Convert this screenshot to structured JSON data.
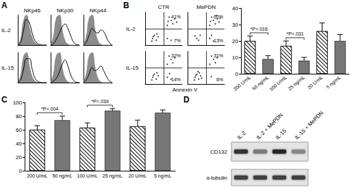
{
  "chart_data": [
    {
      "type": "histogram_overlay",
      "title": "A",
      "columns": [
        "NKp46",
        "NKp30",
        "NKp44"
      ],
      "rows": [
        "IL-2",
        "IL-15"
      ],
      "xlim": [
        0,
        10
      ],
      "ylim": [
        0,
        100
      ],
      "tick_labels": false,
      "x": [
        0,
        1,
        2,
        3,
        4,
        5,
        6,
        7,
        8,
        9,
        10
      ],
      "plots": [
        [
          {
            "series": [
              {
                "type": "area",
                "color": "#8c8c8c",
                "values": [
                  0,
                  20,
                  80,
                  100,
                  60,
                  25,
                  8,
                  2,
                  0,
                  0,
                  0
                ]
              },
              {
                "type": "line",
                "color": "#000000",
                "values": [
                  0,
                  10,
                  50,
                  85,
                  75,
                  40,
                  15,
                  5,
                  1,
                  0,
                  0
                ]
              }
            ]
          },
          {
            "series": [
              {
                "type": "area",
                "color": "#8c8c8c",
                "values": [
                  0,
                  30,
                  90,
                  100,
                  50,
                  15,
                  3,
                  0,
                  0,
                  0,
                  0
                ]
              },
              {
                "type": "line",
                "color": "#000000",
                "values": [
                  0,
                  5,
                  20,
                  40,
                  60,
                  70,
                  55,
                  30,
                  10,
                  2,
                  0
                ]
              }
            ]
          },
          {
            "series": [
              {
                "type": "area",
                "color": "#8c8c8c",
                "values": [
                  0,
                  30,
                  90,
                  100,
                  50,
                  15,
                  3,
                  0,
                  0,
                  0,
                  0
                ]
              },
              {
                "type": "line",
                "color": "#000000",
                "values": [
                  0,
                  10,
                  35,
                  55,
                  45,
                  40,
                  50,
                  45,
                  25,
                  8,
                  0
                ]
              }
            ]
          }
        ],
        [
          {
            "series": [
              {
                "type": "area",
                "color": "#8c8c8c",
                "values": [
                  0,
                  25,
                  85,
                  100,
                  55,
                  20,
                  5,
                  1,
                  0,
                  0,
                  0
                ]
              },
              {
                "type": "line",
                "color": "#000000",
                "values": [
                  0,
                  10,
                  45,
                  80,
                  80,
                  45,
                  15,
                  4,
                  1,
                  0,
                  0
                ]
              }
            ]
          },
          {
            "series": [
              {
                "type": "area",
                "color": "#8c8c8c",
                "values": [
                  0,
                  30,
                  90,
                  100,
                  50,
                  15,
                  3,
                  0,
                  0,
                  0,
                  0
                ]
              },
              {
                "type": "line",
                "color": "#000000",
                "values": [
                  0,
                  5,
                  15,
                  35,
                  60,
                  75,
                  55,
                  25,
                  8,
                  1,
                  0
                ]
              }
            ]
          },
          {
            "series": [
              {
                "type": "area",
                "color": "#8c8c8c",
                "values": [
                  0,
                  30,
                  90,
                  100,
                  50,
                  15,
                  3,
                  0,
                  0,
                  0,
                  0
                ]
              },
              {
                "type": "line",
                "color": "#000000",
                "values": [
                  0,
                  10,
                  30,
                  50,
                  40,
                  45,
                  55,
                  40,
                  20,
                  6,
                  0
                ]
              }
            ]
          }
        ]
      ]
    },
    {
      "type": "dot_plot",
      "title": "B",
      "columns": [
        "CTR",
        "MePDN"
      ],
      "rows": [
        "IL-2",
        "IL-15"
      ],
      "x_label": "Annexin V",
      "xlim": [
        0,
        10
      ],
      "ylim": [
        0,
        10
      ],
      "tick_labels": false,
      "gates": {
        "x": 5,
        "y": 5
      },
      "color": "#000000",
      "plots": [
        [
          {
            "points": [
              [
                2,
                2
              ],
              [
                3,
                1.5
              ],
              [
                2.5,
                3
              ],
              [
                3.5,
                2.5
              ],
              [
                1.8,
                1.2
              ],
              [
                3.2,
                3.4
              ],
              [
                2.2,
                2.6
              ],
              [
                6,
                2
              ],
              [
                7,
                1.5
              ],
              [
                6,
                6
              ],
              [
                7,
                7.5
              ],
              [
                8,
                8
              ],
              [
                6.5,
                8.5
              ],
              [
                7.5,
                6.5
              ],
              [
                8.5,
                7
              ],
              [
                6.2,
                7.2
              ]
            ],
            "annotations": [
              {
                "text": "41%",
                "position": "upper right"
              },
              {
                "text": "7%",
                "position": "lower right"
              }
            ]
          },
          {
            "points": [
              [
                2.5,
                2
              ],
              [
                3,
                1.5
              ],
              [
                2,
                2.8
              ],
              [
                3.4,
                3
              ],
              [
                6,
                2
              ],
              [
                7,
                1.2
              ],
              [
                6.5,
                3
              ],
              [
                6,
                6
              ],
              [
                7,
                7.5
              ],
              [
                8,
                8
              ],
              [
                6.5,
                8.5
              ],
              [
                7.5,
                6.5
              ],
              [
                8.5,
                7
              ],
              [
                6.2,
                7.2
              ],
              [
                7.8,
                9
              ],
              [
                8.8,
                8.2
              ]
            ],
            "annotations": [
              {
                "text": "60%",
                "position": "upper right"
              },
              {
                "text": "13%",
                "position": "lower right"
              }
            ]
          }
        ],
        [
          {
            "points": [
              [
                2,
                2
              ],
              [
                3,
                1.5
              ],
              [
                2.5,
                3
              ],
              [
                3.5,
                2.5
              ],
              [
                1.8,
                1.2
              ],
              [
                3.2,
                3.4
              ],
              [
                2.2,
                2.6
              ],
              [
                6,
                2
              ],
              [
                7,
                1.5
              ],
              [
                6.6,
                3.2
              ],
              [
                6,
                6
              ],
              [
                7,
                7.5
              ],
              [
                8,
                8
              ],
              [
                6.5,
                8.5
              ],
              [
                7.5,
                6.5
              ]
            ],
            "annotations": [
              {
                "text": "32%",
                "position": "upper right"
              },
              {
                "text": "14%",
                "position": "lower right"
              }
            ]
          },
          {
            "points": [
              [
                2,
                2
              ],
              [
                3,
                1.5
              ],
              [
                2.5,
                3
              ],
              [
                3.5,
                2.5
              ],
              [
                1.8,
                1.2
              ],
              [
                3.2,
                3.4
              ],
              [
                2.2,
                2.6
              ],
              [
                3.8,
                1.8
              ],
              [
                2.8,
                3.8
              ],
              [
                6.4,
                2.2
              ],
              [
                6,
                6
              ],
              [
                7,
                7.5
              ],
              [
                8,
                8
              ],
              [
                6.5,
                8.5
              ],
              [
                7.5,
                6.5
              ]
            ],
            "annotations": [
              {
                "text": "31%",
                "position": "upper right"
              },
              {
                "text": "6%",
                "position": "lower right"
              }
            ]
          }
        ]
      ]
    },
    {
      "type": "bar",
      "categories": [
        "200 U/mL",
        "50 ng/mL",
        "100 U/mL",
        "25 ng/mL",
        "20 U/mL",
        "5 ng/mL"
      ],
      "ylim": [
        0,
        40
      ],
      "yticks": [
        0,
        10,
        20,
        30,
        40
      ],
      "series": [
        {
          "color": "#ffffff",
          "marker": "hatched",
          "values": [
            20,
            null,
            17,
            null,
            26,
            null
          ],
          "errors": [
            3,
            null,
            3,
            null,
            5,
            null
          ]
        },
        {
          "color": "#777777",
          "marker": "solid",
          "values": [
            null,
            9,
            null,
            8,
            null,
            20
          ],
          "errors": [
            null,
            2,
            null,
            2,
            null,
            4
          ]
        }
      ],
      "annotations": [
        {
          "text": "*P=.016",
          "from": 0,
          "to": 1
        },
        {
          "text": "*P=.031",
          "from": 2,
          "to": 3
        }
      ]
    },
    {
      "type": "bar",
      "title": "C",
      "categories": [
        "200 U/mL",
        "50 ng/mL",
        "100 U/mL",
        "25 ng/mL",
        "20 U/mL",
        "5 ng/mL"
      ],
      "ylim": [
        0,
        100
      ],
      "yticks": [
        0,
        20,
        40,
        60,
        80,
        100
      ],
      "series": [
        {
          "color": "#ffffff",
          "marker": "hatched",
          "values": [
            60,
            null,
            63,
            null,
            65,
            null
          ],
          "errors": [
            6,
            null,
            7,
            null,
            9,
            null
          ]
        },
        {
          "color": "#777777",
          "marker": "solid",
          "values": [
            null,
            74,
            null,
            88,
            null,
            85
          ],
          "errors": [
            null,
            6,
            null,
            3,
            null,
            4
          ]
        }
      ],
      "annotations": [
        {
          "text": "*P=.004",
          "from": 0,
          "to": 1
        },
        {
          "text": "*P=.039",
          "from": 2,
          "to": 3
        }
      ]
    },
    {
      "type": "blot",
      "title": "D",
      "lanes": [
        "IL-2",
        "IL-2 + MePDN",
        "IL-15",
        "IL-15 + MePDN"
      ],
      "bands": [
        {
          "label": "CD132",
          "intensities": [
            85,
            55,
            90,
            50
          ]
        },
        {
          "label": "α-tubulin",
          "intensities": [
            80,
            80,
            80,
            80
          ]
        }
      ]
    }
  ]
}
